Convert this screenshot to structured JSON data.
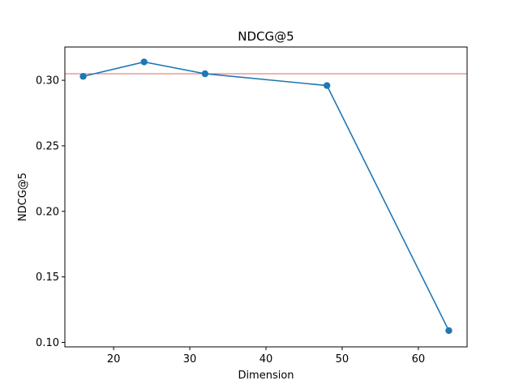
{
  "chart_data": {
    "type": "line",
    "title": "NDCG@5",
    "xlabel": "Dimension",
    "ylabel": "NDCG@5",
    "xlim": [
      13.6,
      66.4
    ],
    "ylim": [
      0.0966,
      0.3254
    ],
    "xticks": [
      20,
      30,
      40,
      50,
      60
    ],
    "yticks": [
      0.1,
      0.15,
      0.2,
      0.25,
      0.3
    ],
    "grid": false,
    "series": [
      {
        "color": "#1f77b4",
        "x": [
          16,
          24,
          32,
          48,
          64
        ],
        "y": [
          0.303,
          0.314,
          0.305,
          0.296,
          0.109
        ]
      }
    ],
    "reference_line": {
      "y": 0.305,
      "color": "#e06666"
    }
  }
}
